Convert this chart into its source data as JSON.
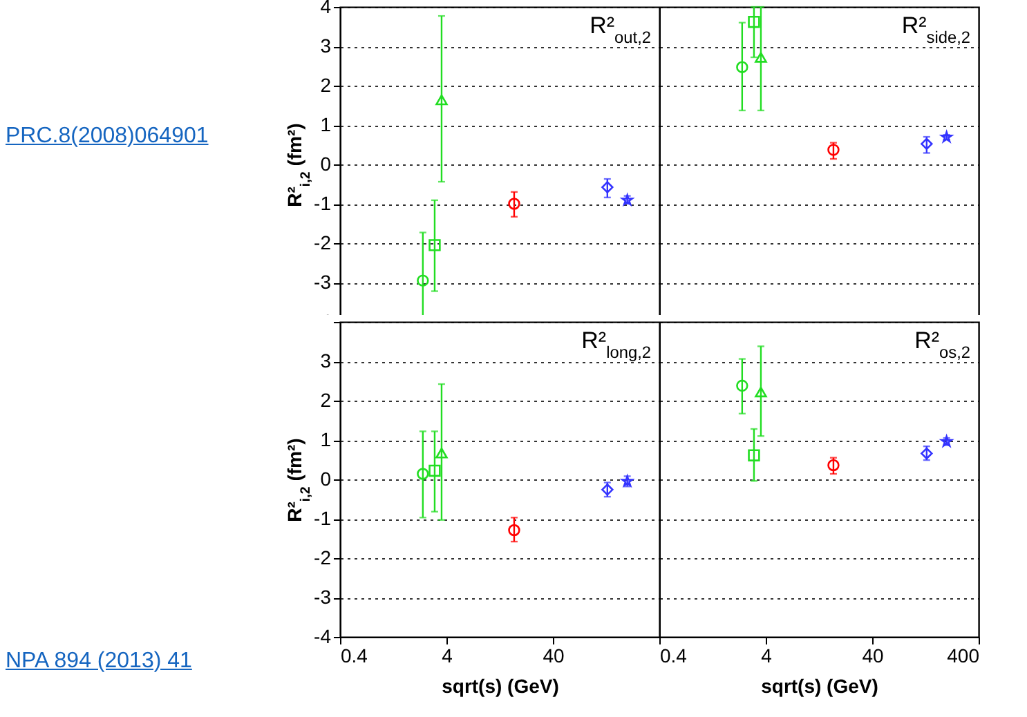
{
  "chart_data": [
    {
      "type": "scatter",
      "title": "R²$_{out,2}$",
      "ylabel": "R²$_{i,2}$ (fm²)",
      "log": "x",
      "grid": "y",
      "tick_labels": "y",
      "xlim": [
        0.4,
        400
      ],
      "ylim": [
        -4,
        4
      ],
      "xticks": [
        0.4,
        4,
        40,
        400
      ],
      "yticks": [
        -4,
        -3,
        -2,
        -1,
        0,
        1,
        2,
        3,
        4
      ],
      "annotations": [
        "PRC.8(2008)064901"
      ],
      "series": [
        {
          "color": "#22dd22",
          "marker": "circle",
          "x": [
            2.4
          ],
          "values": [
            -2.95
          ],
          "errors": [
            [
              -4,
              -1.73
            ]
          ]
        },
        {
          "color": "#22dd22",
          "marker": "square",
          "x": [
            3.1
          ],
          "values": [
            -2.05
          ],
          "errors": [
            [
              -3.22,
              -0.91
            ]
          ]
        },
        {
          "color": "#22dd22",
          "marker": "triangle",
          "x": [
            3.6
          ],
          "values": [
            1.64
          ],
          "errors": [
            [
              -0.44,
              3.77
            ]
          ]
        },
        {
          "color": "#ff0000",
          "marker": "circle",
          "x": [
            17.3
          ],
          "values": [
            -1.0
          ],
          "errors": [
            [
              -1.33,
              -0.7
            ]
          ]
        },
        {
          "color": "#3333ff",
          "marker": "diamond",
          "x": [
            130
          ],
          "values": [
            -0.58
          ],
          "errors": [
            [
              -0.84,
              -0.37
            ]
          ]
        },
        {
          "color": "#3333ff",
          "marker": "star",
          "x": [
            200
          ],
          "values": [
            -0.91
          ],
          "errors": [
            [
              -1.0,
              -0.8
            ]
          ]
        }
      ]
    },
    {
      "type": "scatter",
      "title": "R²$_{side,2}$",
      "log": "x",
      "grid": "y",
      "tick_labels": false,
      "xlim": [
        0.4,
        400
      ],
      "ylim": [
        -4,
        4
      ],
      "xticks": [
        0.4,
        4,
        40,
        400
      ],
      "yticks": [
        -4,
        -3,
        -2,
        -1,
        0,
        1,
        2,
        3,
        4
      ],
      "series": [
        {
          "color": "#22dd22",
          "marker": "circle",
          "x": [
            2.4
          ],
          "values": [
            2.47
          ],
          "errors": [
            [
              1.37,
              3.6
            ]
          ]
        },
        {
          "color": "#22dd22",
          "marker": "square",
          "x": [
            3.1
          ],
          "values": [
            3.62
          ],
          "errors": [
            [
              2.72,
              4
            ]
          ]
        },
        {
          "color": "#22dd22",
          "marker": "triangle",
          "x": [
            3.6
          ],
          "values": [
            2.72
          ],
          "errors": [
            [
              1.37,
              4
            ]
          ]
        },
        {
          "color": "#ff0000",
          "marker": "circle",
          "x": [
            17.3
          ],
          "values": [
            0.37
          ],
          "errors": [
            [
              0.14,
              0.55
            ]
          ]
        },
        {
          "color": "#3333ff",
          "marker": "diamond",
          "x": [
            130
          ],
          "values": [
            0.52
          ],
          "errors": [
            [
              0.29,
              0.7
            ]
          ]
        },
        {
          "color": "#3333ff",
          "marker": "star",
          "x": [
            200
          ],
          "values": [
            0.69
          ],
          "errors": [
            [
              0.63,
              0.75
            ]
          ]
        }
      ]
    },
    {
      "type": "scatter",
      "title": "R²$_{long,2}$",
      "xlabel": "sqrt(s) (GeV)",
      "ylabel": "R²$_{i,2}$ (fm²)",
      "log": "x",
      "grid": "y",
      "xlim": [
        0.4,
        400
      ],
      "ylim": [
        -4,
        4
      ],
      "xticks": [
        0.4,
        4,
        40
      ],
      "yticks": [
        -4,
        -3,
        -2,
        -1,
        0,
        1,
        2,
        3,
        {
          "value": 4,
          "label": null
        }
      ],
      "annotations": [
        "NPA 894 (2013) 41"
      ],
      "series": [
        {
          "color": "#22dd22",
          "marker": "circle",
          "x": [
            2.4
          ],
          "values": [
            0.14
          ],
          "errors": [
            [
              -0.97,
              1.22
            ]
          ]
        },
        {
          "color": "#22dd22",
          "marker": "square",
          "x": [
            3.1
          ],
          "values": [
            0.22
          ],
          "errors": [
            [
              -0.82,
              1.22
            ]
          ]
        },
        {
          "color": "#22dd22",
          "marker": "triangle",
          "x": [
            3.6
          ],
          "values": [
            0.67
          ],
          "errors": [
            [
              -1.03,
              2.42
            ]
          ]
        },
        {
          "color": "#ff0000",
          "marker": "circle",
          "x": [
            17.3
          ],
          "values": [
            -1.29
          ],
          "errors": [
            [
              -1.58,
              -0.97
            ]
          ]
        },
        {
          "color": "#3333ff",
          "marker": "diamond",
          "x": [
            130
          ],
          "values": [
            -0.26
          ],
          "errors": [
            [
              -0.44,
              -0.08
            ]
          ]
        },
        {
          "color": "#3333ff",
          "marker": "star",
          "x": [
            200
          ],
          "values": [
            -0.05
          ],
          "errors": [
            [
              -0.18,
              0.08
            ]
          ]
        }
      ]
    },
    {
      "type": "scatter",
      "title": "R²$_{os,2}$",
      "xlabel": "sqrt(s) (GeV)",
      "log": "x",
      "grid": "y",
      "tick_labels": "x",
      "xlim": [
        0.4,
        400
      ],
      "ylim": [
        -4,
        4
      ],
      "xticks": [
        0.4,
        4,
        40,
        400
      ],
      "yticks": [
        -4,
        -3,
        -2,
        -1,
        0,
        1,
        2,
        3,
        4
      ],
      "series": [
        {
          "color": "#22dd22",
          "marker": "circle",
          "x": [
            2.4
          ],
          "values": [
            2.38
          ],
          "errors": [
            [
              1.67,
              3.06
            ]
          ]
        },
        {
          "color": "#22dd22",
          "marker": "square",
          "x": [
            3.1
          ],
          "values": [
            0.61
          ],
          "errors": [
            [
              -0.04,
              1.28
            ]
          ]
        },
        {
          "color": "#22dd22",
          "marker": "triangle",
          "x": [
            3.6
          ],
          "values": [
            2.22
          ],
          "errors": [
            [
              1.1,
              3.38
            ]
          ]
        },
        {
          "color": "#ff0000",
          "marker": "circle",
          "x": [
            17.3
          ],
          "values": [
            0.36
          ],
          "errors": [
            [
              0.14,
              0.55
            ]
          ]
        },
        {
          "color": "#3333ff",
          "marker": "diamond",
          "x": [
            130
          ],
          "values": [
            0.66
          ],
          "errors": [
            [
              0.49,
              0.84
            ]
          ]
        },
        {
          "color": "#3333ff",
          "marker": "star",
          "x": [
            200
          ],
          "values": [
            0.96
          ],
          "errors": [
            [
              0.87,
              1.05
            ]
          ]
        }
      ]
    }
  ]
}
